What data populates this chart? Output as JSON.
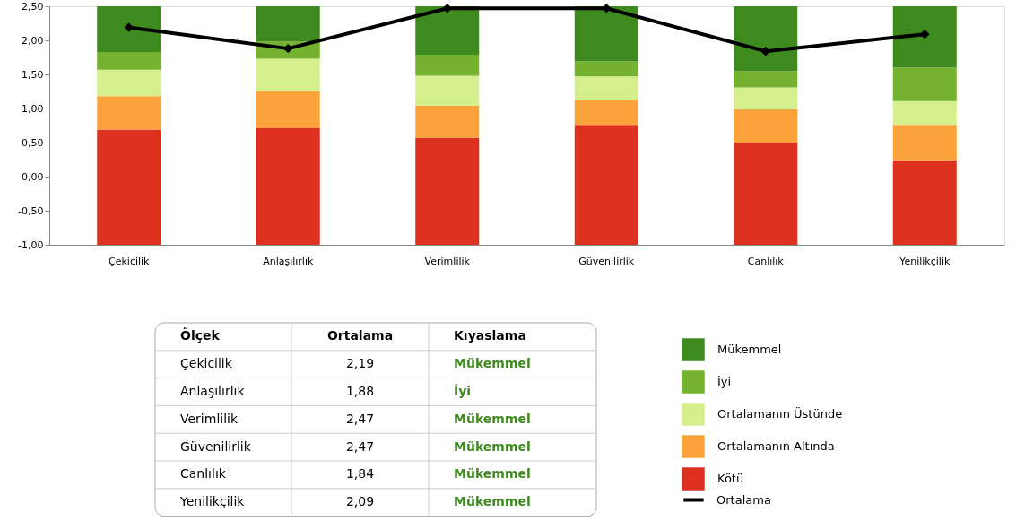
{
  "chart_data": {
    "type": "bar",
    "categories": [
      "Çekicilik",
      "Anlaşılırlık",
      "Verimlilik",
      "Güvenilirlik",
      "Canlılık",
      "Yenilikçilik"
    ],
    "series": [
      {
        "name": "Kötü",
        "color": "#dc311f",
        "base": [
          -1,
          -1,
          -1,
          -1,
          -1,
          -1
        ],
        "values": [
          1.69,
          1.71,
          1.57,
          1.76,
          1.5,
          1.24
        ]
      },
      {
        "name": "Ortalamanın Altında",
        "color": "#fba33a",
        "base": [
          0.69,
          0.71,
          0.57,
          0.76,
          0.5,
          0.24
        ],
        "values": [
          0.49,
          0.54,
          0.47,
          0.37,
          0.49,
          0.52
        ]
      },
      {
        "name": "Ortalamanın Üstünde",
        "color": "#d4ef8b",
        "base": [
          1.18,
          1.25,
          1.04,
          1.13,
          0.99,
          0.76
        ],
        "values": [
          0.39,
          0.48,
          0.44,
          0.34,
          0.32,
          0.35
        ]
      },
      {
        "name": "İyi",
        "color": "#74b22f",
        "base": [
          1.57,
          1.73,
          1.48,
          1.47,
          1.31,
          1.11
        ],
        "values": [
          0.26,
          0.25,
          0.31,
          0.22,
          0.24,
          0.49
        ]
      },
      {
        "name": "Mükemmel",
        "color": "#3e8a1e",
        "base": [
          1.83,
          1.98,
          1.79,
          1.69,
          1.55,
          1.6
        ],
        "values": [
          0.67,
          0.52,
          0.71,
          0.81,
          0.95,
          0.9
        ]
      },
      {
        "name": "Ortalama",
        "type": "line",
        "color": "#000000",
        "marker": "diamond",
        "values": [
          2.19,
          1.88,
          2.47,
          2.47,
          1.84,
          2.09
        ]
      }
    ],
    "ylim": [
      -1,
      2.5
    ],
    "yticks": [
      {
        "value": -1,
        "label": "-1,00"
      },
      {
        "value": -0.5,
        "label": "-0,50"
      },
      {
        "value": 0,
        "label": "0,00"
      },
      {
        "value": 0.5,
        "label": "0,50"
      },
      {
        "value": 1,
        "label": "1,00"
      },
      {
        "value": 1.5,
        "label": "1,50"
      },
      {
        "value": 2,
        "label": "2,00"
      },
      {
        "value": 2.5,
        "label": "2,50"
      }
    ],
    "grid": false,
    "legend": "bottom right",
    "annotations": [
      "Ölçek",
      "Ortalama",
      "Kıyaslama",
      "2,19",
      "1,88",
      "2,47",
      "2,47",
      "1,84",
      "2,09",
      "Mükemmel",
      "İyi",
      "Mükemmel",
      "Mükemmel",
      "Mükemmel",
      "Mükemmel"
    ]
  }
}
